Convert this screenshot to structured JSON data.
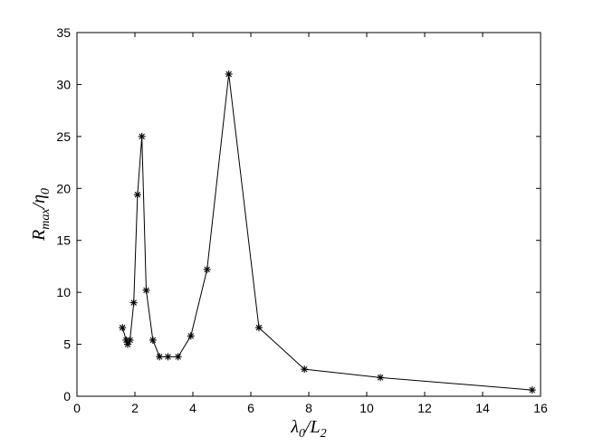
{
  "chart_data": {
    "type": "line",
    "title": "",
    "xlabel": "λ0/L2",
    "ylabel": "Rmax/η0",
    "xlim": [
      0,
      16
    ],
    "ylim": [
      0,
      35
    ],
    "xticks": [
      0,
      2,
      4,
      6,
      8,
      10,
      12,
      14,
      16
    ],
    "yticks": [
      0,
      5,
      10,
      15,
      20,
      25,
      30,
      35
    ],
    "grid": false,
    "legend": "none",
    "marker": "asterisk",
    "line_color": "#000000",
    "series": [
      {
        "x": [
          1.57,
          1.7,
          1.75,
          1.83,
          1.96,
          2.09,
          2.24,
          2.39,
          2.62,
          2.85,
          3.14,
          3.49,
          3.93,
          4.49,
          5.24,
          6.28,
          7.85,
          10.47,
          15.71
        ],
        "y": [
          6.6,
          5.4,
          5.0,
          5.4,
          9.0,
          19.4,
          25.0,
          10.2,
          5.4,
          3.8,
          3.8,
          3.8,
          5.8,
          12.2,
          31.0,
          6.6,
          2.6,
          1.8,
          0.6
        ]
      }
    ]
  }
}
